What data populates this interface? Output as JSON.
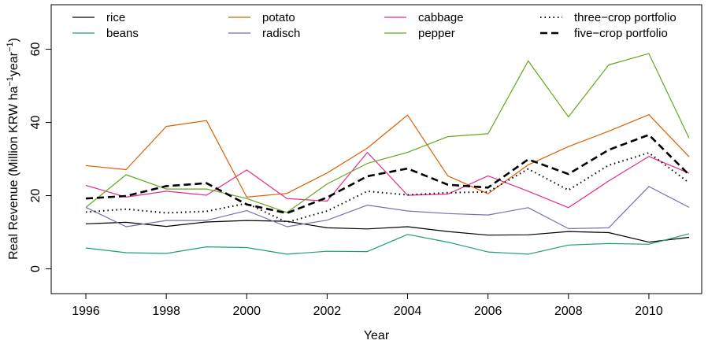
{
  "chart_data": {
    "type": "line",
    "title": "",
    "xlabel": "Year",
    "ylabel": "Real Revenue (Million KRW ha",
    "ylabel_sup1": "−1",
    "ylabel_mid": "year",
    "ylabel_sup2": "−1",
    "ylabel_end": ")",
    "xlim": [
      1996,
      2011
    ],
    "ylim": [
      -7,
      72
    ],
    "x_ticks": [
      "1996",
      "1998",
      "2000",
      "2002",
      "2004",
      "2006",
      "2008",
      "2010"
    ],
    "y_ticks": [
      "0",
      "20",
      "40",
      "60"
    ],
    "grid": false,
    "legend_position": "top",
    "x": [
      1996,
      1997,
      1998,
      1999,
      2000,
      2001,
      2002,
      2003,
      2004,
      2005,
      2006,
      2007,
      2008,
      2009,
      2010,
      2011
    ],
    "series": [
      {
        "name": "rice",
        "color": "#000000",
        "dash": "solid",
        "width": 1.2,
        "values": [
          12.3,
          12.7,
          11.6,
          12.8,
          13.2,
          13.0,
          11.2,
          10.9,
          11.5,
          10.2,
          9.2,
          9.3,
          10.2,
          9.9,
          7.3,
          8.6
        ]
      },
      {
        "name": "beans",
        "color": "#1B9E77",
        "dash": "solid",
        "width": 1.2,
        "values": [
          5.7,
          4.4,
          4.2,
          6.0,
          5.8,
          4.0,
          4.8,
          4.7,
          9.4,
          7.3,
          4.6,
          4.0,
          6.5,
          6.9,
          6.7,
          9.6
        ]
      },
      {
        "name": "potato",
        "color": "#D95F02",
        "dash": "solid",
        "width": 1.2,
        "values": [
          28.2,
          27.1,
          38.9,
          40.5,
          19.6,
          20.6,
          26.2,
          33.0,
          42.0,
          25.4,
          20.5,
          28.4,
          33.4,
          37.6,
          42.1,
          30.6
        ]
      },
      {
        "name": "radisch",
        "color": "#7570B3",
        "dash": "solid",
        "width": 1.2,
        "values": [
          16.8,
          11.5,
          13.2,
          13.2,
          15.9,
          11.5,
          13.3,
          17.4,
          15.8,
          15.1,
          14.7,
          16.7,
          11.0,
          11.2,
          22.5,
          16.8
        ]
      },
      {
        "name": "cabbage",
        "color": "#E7298A",
        "dash": "solid",
        "width": 1.2,
        "values": [
          22.8,
          19.6,
          21.2,
          20.1,
          27.0,
          19.2,
          18.5,
          31.8,
          20.1,
          20.4,
          25.4,
          21.2,
          16.7,
          24.0,
          30.7,
          26.1
        ]
      },
      {
        "name": "pepper",
        "color": "#66A61E",
        "dash": "solid",
        "width": 1.2,
        "values": [
          16.8,
          25.7,
          21.8,
          21.8,
          19.2,
          15.4,
          23.2,
          28.8,
          31.8,
          36.1,
          36.9,
          56.8,
          41.5,
          55.7,
          58.8,
          35.7
        ]
      },
      {
        "name": "three−crop portfolio",
        "color": "#000000",
        "dash": "dotted",
        "width": 2,
        "values": [
          15.5,
          16.3,
          15.3,
          15.7,
          17.9,
          12.7,
          15.8,
          21.2,
          20.2,
          20.8,
          21.0,
          27.3,
          21.5,
          28.3,
          31.7,
          23.5
        ]
      },
      {
        "name": "five−crop portfolio",
        "color": "#000000",
        "dash": "dashed",
        "width": 2.6,
        "values": [
          19.2,
          19.9,
          22.6,
          23.4,
          17.6,
          15.2,
          19.5,
          25.3,
          27.4,
          23.0,
          22.2,
          29.9,
          25.9,
          32.5,
          36.6,
          25.7
        ]
      }
    ]
  }
}
